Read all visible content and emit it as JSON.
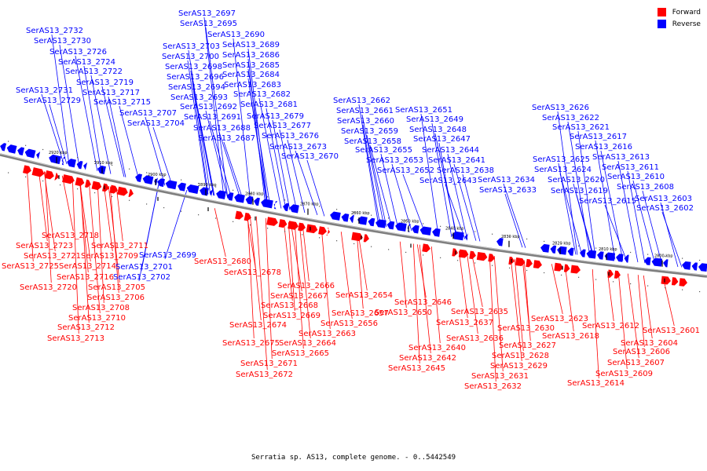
{
  "caption": "Serratia sp. AS13, complete genome. - 0..5442549",
  "legend": [
    {
      "label": "Forward",
      "color": "#ff0000"
    },
    {
      "label": "Reverse",
      "color": "#0000ff"
    }
  ],
  "colors": {
    "forward": "#ff0000",
    "reverse": "#0000ff",
    "backbone": "#7f7f7f"
  },
  "ticks": [
    "2920 kbp",
    "2910 kbp",
    "2900 kbp",
    "2890 kbp",
    "2880 kbp",
    "2870 kbp",
    "2860 kbp",
    "2850 kbp",
    "2840 kbp",
    "2830 kbp",
    "2820 kbp",
    "2810 kbp",
    "2800 kbp"
  ],
  "reverse_labels": [
    "SerAS13_2732",
    "SerAS13_2730",
    "SerAS13_2726",
    "SerAS13_2724",
    "SerAS13_2722",
    "SerAS13_2719",
    "SerAS13_2717",
    "SerAS13_2715",
    "SerAS13_2731",
    "SerAS13_2729",
    "SerAS13_2697",
    "SerAS13_2695",
    "SerAS13_2690",
    "SerAS13_2689",
    "SerAS13_2703",
    "SerAS13_2686",
    "SerAS13_2700",
    "SerAS13_2685",
    "SerAS13_2698",
    "SerAS13_2684",
    "SerAS13_2696",
    "SerAS13_2683",
    "SerAS13_2694",
    "SerAS13_2682",
    "SerAS13_2693",
    "SerAS13_2681",
    "SerAS13_2692",
    "SerAS13_2679",
    "SerAS13_2707",
    "SerAS13_2691",
    "SerAS13_2677",
    "SerAS13_2704",
    "SerAS13_2688",
    "SerAS13_2676",
    "SerAS13_2687",
    "SerAS13_2673",
    "SerAS13_2670",
    "SerAS13_2662",
    "SerAS13_2661",
    "SerAS13_2660",
    "SerAS13_2659",
    "SerAS13_2658",
    "SerAS13_2655",
    "SerAS13_2653",
    "SerAS13_2652",
    "SerAS13_2651",
    "SerAS13_2649",
    "SerAS13_2648",
    "SerAS13_2647",
    "SerAS13_2644",
    "SerAS13_2641",
    "SerAS13_2638",
    "SerAS13_2643",
    "SerAS13_2634",
    "SerAS13_2633",
    "SerAS13_2626",
    "SerAS13_2622",
    "SerAS13_2621",
    "SerAS13_2617",
    "SerAS13_2616",
    "SerAS13_2625",
    "SerAS13_2613",
    "SerAS13_2624",
    "SerAS13_2611",
    "SerAS13_2620",
    "SerAS13_2610",
    "SerAS13_2619",
    "SerAS13_2608",
    "SerAS13_2615",
    "SerAS13_2603",
    "SerAS13_2602",
    "SerAS13_2699",
    "SerAS13_2701",
    "SerAS13_2702"
  ],
  "forward_labels": [
    "SerAS13_2718",
    "SerAS13_2723",
    "SerAS13_2711",
    "SerAS13_2721",
    "SerAS13_2709",
    "SerAS13_2725",
    "SerAS13_2714",
    "SerAS13_2716",
    "SerAS13_2720",
    "SerAS13_2705",
    "SerAS13_2706",
    "SerAS13_2708",
    "SerAS13_2710",
    "SerAS13_2712",
    "SerAS13_2713",
    "SerAS13_2680",
    "SerAS13_2678",
    "SerAS13_2666",
    "SerAS13_2667",
    "SerAS13_2668",
    "SerAS13_2669",
    "SerAS13_2674",
    "SerAS13_2663",
    "SerAS13_2675",
    "SerAS13_2664",
    "SerAS13_2665",
    "SerAS13_2671",
    "SerAS13_2672",
    "SerAS13_2654",
    "SerAS13_2657",
    "SerAS13_2656",
    "SerAS13_2646",
    "SerAS13_2650",
    "SerAS13_2635",
    "SerAS13_2637",
    "SerAS13_2630",
    "SerAS13_2636",
    "SerAS13_2640",
    "SerAS13_2627",
    "SerAS13_2642",
    "SerAS13_2628",
    "SerAS13_2645",
    "SerAS13_2629",
    "SerAS13_2631",
    "SerAS13_2632",
    "SerAS13_2623",
    "SerAS13_2618",
    "SerAS13_2612",
    "SerAS13_2601",
    "SerAS13_2604",
    "SerAS13_2606",
    "SerAS13_2607",
    "SerAS13_2609",
    "SerAS13_2614"
  ]
}
